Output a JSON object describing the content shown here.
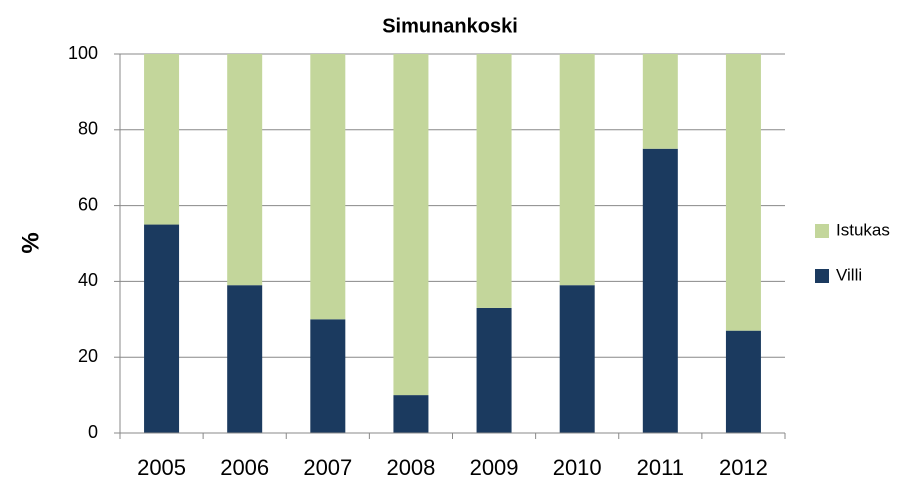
{
  "chart_data": {
    "type": "stacked_bar",
    "title": "Simunankoski",
    "y_label": "%",
    "categories": [
      "2005",
      "2006",
      "2007",
      "2008",
      "2009",
      "2010",
      "2011",
      "2012"
    ],
    "series": [
      {
        "name": "Villi",
        "color": "#1b3a5f",
        "values": [
          55,
          39,
          30,
          10,
          33,
          39,
          75,
          27
        ]
      },
      {
        "name": "Istukas",
        "color": "#c3d69b",
        "values": [
          45,
          61,
          70,
          90,
          67,
          61,
          25,
          73
        ]
      }
    ],
    "ylim": [
      0,
      100
    ],
    "yticks": [
      0,
      20,
      40,
      60,
      80,
      100
    ],
    "grid": true,
    "legend": "right"
  }
}
